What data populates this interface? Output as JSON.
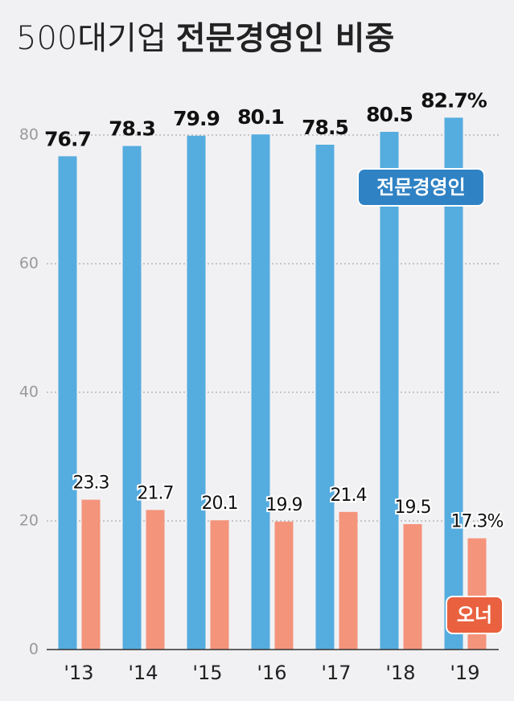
{
  "chart_data": {
    "type": "bar",
    "title_parts": [
      "500대기업",
      "전문경영인 비중"
    ],
    "categories": [
      "'13",
      "'14",
      "'15",
      "'16",
      "'17",
      "'18",
      "'19"
    ],
    "series": [
      {
        "name": "전문경영인",
        "color": "#55acdf",
        "label_color": "#2f82c4",
        "values": [
          76.7,
          78.3,
          79.9,
          80.1,
          78.5,
          80.5,
          82.7
        ],
        "value_labels": [
          "76.7",
          "78.3",
          "79.9",
          "80.1",
          "78.5",
          "80.5",
          "82.7%"
        ]
      },
      {
        "name": "오너",
        "color": "#f4947b",
        "label_color": "#e9613f",
        "values": [
          23.3,
          21.7,
          20.1,
          19.9,
          21.4,
          19.5,
          17.3
        ],
        "value_labels": [
          "23.3",
          "21.7",
          "20.1",
          "19.9",
          "21.4",
          "19.5",
          "17.3%"
        ]
      }
    ],
    "ylim": [
      0,
      85
    ],
    "yticks": [
      0,
      20,
      40,
      60,
      80
    ],
    "grid": true
  }
}
